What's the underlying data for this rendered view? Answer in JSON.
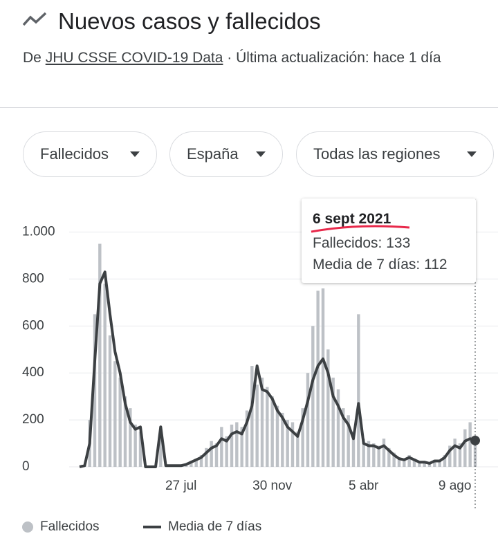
{
  "header": {
    "title": "Nuevos casos y fallecidos",
    "source_prefix": "De",
    "source_link": "JHU CSSE COVID-19 Data",
    "updated": "· Última actualización: hace 1 día"
  },
  "filters": [
    "Fallecidos",
    "España",
    "Todas las regiones"
  ],
  "chart_data": {
    "type": "bar",
    "categories": [
      null,
      null,
      null,
      null,
      null,
      null,
      null,
      null,
      null,
      null,
      null,
      null,
      null,
      null,
      null,
      null,
      null,
      null,
      null,
      null,
      "27 jul",
      null,
      null,
      null,
      null,
      null,
      null,
      null,
      null,
      null,
      null,
      null,
      null,
      null,
      null,
      null,
      null,
      null,
      "30 nov",
      null,
      null,
      null,
      null,
      null,
      null,
      null,
      null,
      null,
      null,
      null,
      null,
      null,
      null,
      null,
      null,
      null,
      "5 abr",
      null,
      null,
      null,
      null,
      null,
      null,
      null,
      null,
      null,
      null,
      null,
      null,
      null,
      null,
      null,
      null,
      null,
      "9 ago",
      null,
      null,
      null,
      null
    ],
    "series": [
      {
        "name": "Fallecidos",
        "color": "#bdc1c6",
        "values": [
          0,
          10,
          200,
          650,
          950,
          780,
          560,
          450,
          380,
          300,
          250,
          180,
          150,
          0,
          0,
          0,
          170,
          0,
          5,
          5,
          8,
          12,
          25,
          35,
          50,
          80,
          110,
          100,
          170,
          130,
          180,
          190,
          170,
          240,
          430,
          350,
          380,
          340,
          300,
          260,
          230,
          200,
          190,
          150,
          250,
          400,
          600,
          750,
          760,
          500,
          380,
          330,
          250,
          220,
          150,
          650,
          120,
          110,
          100,
          90,
          120,
          80,
          60,
          40,
          35,
          50,
          35,
          25,
          20,
          15,
          30,
          30,
          50,
          90,
          120,
          100,
          160,
          190,
          133
        ]
      },
      {
        "name": "Media de 7 días",
        "type": "line",
        "color": "#3c4043",
        "values": [
          0,
          5,
          100,
          450,
          780,
          830,
          650,
          490,
          400,
          270,
          190,
          160,
          170,
          0,
          0,
          0,
          170,
          5,
          5,
          5,
          5,
          10,
          20,
          30,
          40,
          60,
          80,
          90,
          120,
          110,
          140,
          150,
          140,
          190,
          260,
          430,
          330,
          320,
          290,
          240,
          210,
          170,
          150,
          130,
          200,
          280,
          370,
          430,
          460,
          400,
          300,
          260,
          210,
          180,
          120,
          270,
          100,
          90,
          90,
          80,
          90,
          70,
          50,
          35,
          30,
          40,
          30,
          20,
          20,
          15,
          25,
          25,
          40,
          70,
          90,
          80,
          110,
          120,
          112
        ]
      }
    ],
    "ylim": [
      0,
      1140
    ],
    "yticks": [
      0,
      200,
      400,
      600,
      800,
      {
        "value": 1000,
        "label": "1.000"
      }
    ],
    "grid": true,
    "tooltip": {
      "date": "6 sept 2021",
      "rows": [
        {
          "label": "Fallecidos:",
          "value": 133
        },
        {
          "label": "Media de 7 días:",
          "value": 112
        }
      ]
    }
  }
}
